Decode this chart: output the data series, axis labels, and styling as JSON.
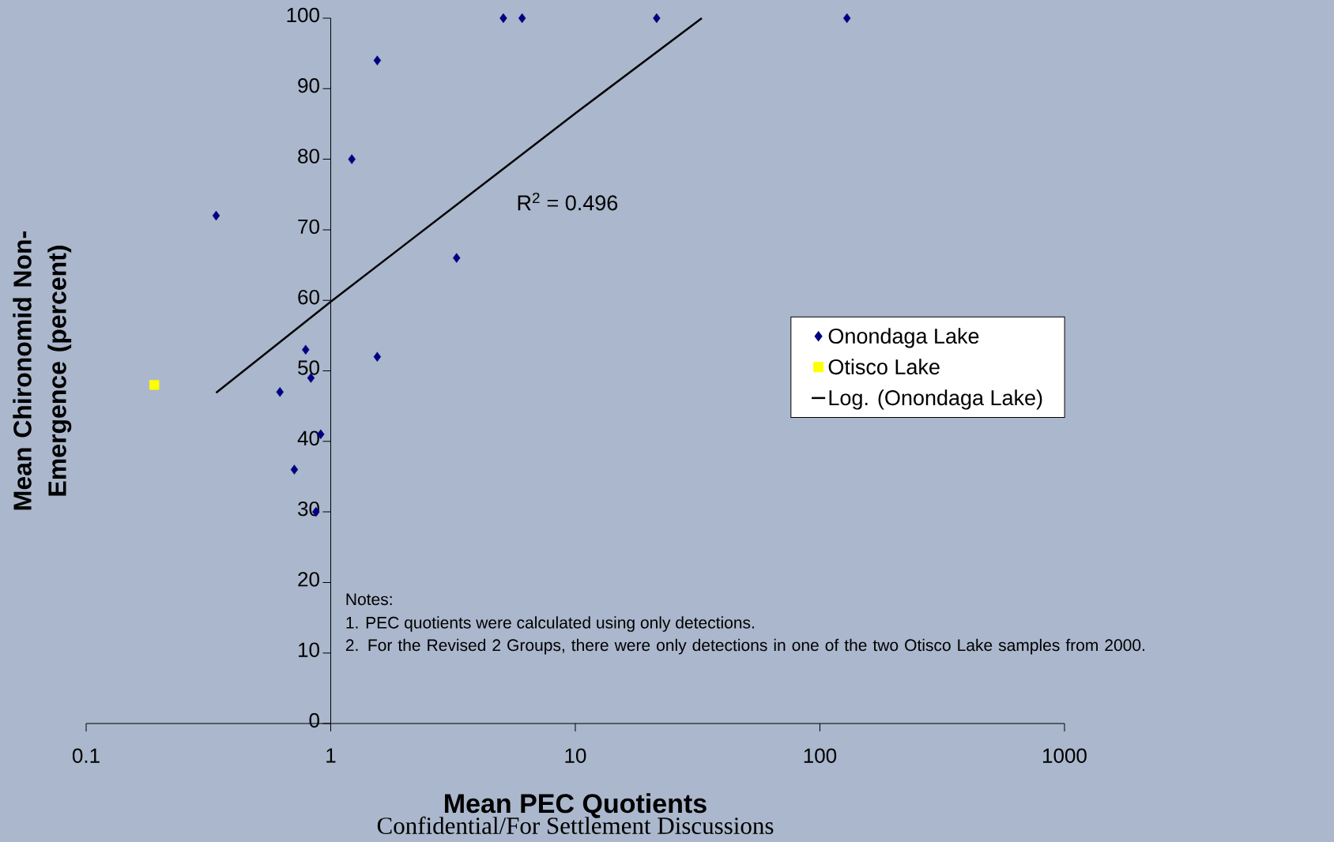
{
  "chart_data": {
    "type": "scatter",
    "xlabel": "Mean PEC Quotients",
    "ylabel": "Mean Chironomid Non-Emergence (percent)",
    "log": "x",
    "grid": false,
    "legend": "right",
    "xlim": [
      0.1,
      1000
    ],
    "ylim": [
      0,
      100
    ],
    "xticks": [
      0.1,
      1,
      10,
      100,
      1000
    ],
    "yticks": [
      0,
      10,
      20,
      30,
      40,
      50,
      60,
      70,
      80,
      90,
      100
    ],
    "series": [
      {
        "name": "Onondaga Lake",
        "color": "#000080",
        "marker": "diamond",
        "x": [
          0.34,
          1.55,
          1.22,
          5.08,
          6.06,
          21.5,
          129,
          3.27,
          1.55,
          0.79,
          0.83,
          0.62,
          0.91,
          0.71,
          0.87
        ],
        "values": [
          72,
          94,
          80,
          100,
          100,
          100,
          100,
          66,
          52,
          53,
          49,
          47,
          41,
          36,
          30
        ]
      },
      {
        "name": "Otisco Lake",
        "color": "#ffff00",
        "marker": "square",
        "x": [
          0.19
        ],
        "values": [
          48
        ]
      },
      {
        "name": "Log. (Onondaga Lake)",
        "type": "line",
        "color": "#000000",
        "marker": "none",
        "line_style": "solid",
        "x": [
          0.34,
          1,
          10,
          32.9
        ],
        "values": [
          46.9,
          59.8,
          86.5,
          100
        ]
      }
    ],
    "annotations": [
      "R$^{2}$ = 0.496",
      "Notes:",
      "1. PEC quotients were calculated using only detections.",
      "2. For the Revised 2 Groups, there were only detections in one of the two Otisco Lake samples from 2000.",
      "Confidential/For Settlement Discussions"
    ]
  }
}
